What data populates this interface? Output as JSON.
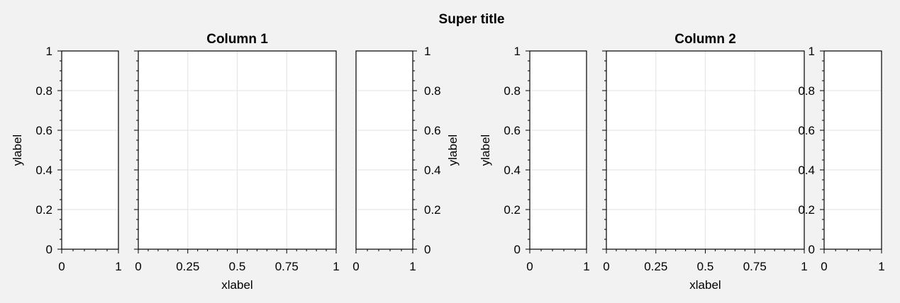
{
  "figure": {
    "suptitle": "Super title",
    "background": "#f2f2f2",
    "axes_face": "#ffffff",
    "grid_color": "#e6e6e6"
  },
  "chart_data": [
    {
      "type": "line",
      "name": "col1-left",
      "title": "",
      "xlabel": "",
      "ylabel": "ylabel",
      "xlim": [
        0,
        1
      ],
      "ylim": [
        0,
        1
      ],
      "xticks": [
        0,
        1
      ],
      "xtick_labels": [
        "0",
        "1"
      ],
      "yticks": [
        0,
        0.2,
        0.4,
        0.6,
        0.8,
        1
      ],
      "ytick_labels": [
        "0",
        "0.2",
        "0.4",
        "0.6",
        "0.8",
        "1"
      ],
      "yaxis_side": "left",
      "grid": false,
      "series": []
    },
    {
      "type": "line",
      "name": "col1-main",
      "title": "Column 1",
      "xlabel": "xlabel",
      "ylabel": "",
      "xlim": [
        0,
        1
      ],
      "ylim": [
        0,
        1
      ],
      "xticks": [
        0,
        0.25,
        0.5,
        0.75,
        1
      ],
      "xtick_labels": [
        "0",
        "0.25",
        "0.5",
        "0.75",
        "1"
      ],
      "yticks": [
        0,
        0.2,
        0.4,
        0.6,
        0.8,
        1
      ],
      "ytick_labels": [],
      "yaxis_side": "left",
      "grid": true,
      "series": []
    },
    {
      "type": "line",
      "name": "col1-right",
      "title": "",
      "xlabel": "",
      "ylabel": "ylabel",
      "xlim": [
        0,
        1
      ],
      "ylim": [
        0,
        1
      ],
      "xticks": [
        0,
        1
      ],
      "xtick_labels": [
        "0",
        "1"
      ],
      "yticks": [
        0,
        0.2,
        0.4,
        0.6,
        0.8,
        1
      ],
      "ytick_labels": [
        "0",
        "0.2",
        "0.4",
        "0.6",
        "0.8",
        "1"
      ],
      "yaxis_side": "right",
      "grid": false,
      "series": []
    },
    {
      "type": "line",
      "name": "col2-left",
      "title": "",
      "xlabel": "",
      "ylabel": "ylabel",
      "xlim": [
        0,
        1
      ],
      "ylim": [
        0,
        1
      ],
      "xticks": [
        0,
        1
      ],
      "xtick_labels": [
        "0",
        "1"
      ],
      "yticks": [
        0,
        0.2,
        0.4,
        0.6,
        0.8,
        1
      ],
      "ytick_labels": [
        "0",
        "0.2",
        "0.4",
        "0.6",
        "0.8",
        "1"
      ],
      "yaxis_side": "left",
      "grid": false,
      "series": []
    },
    {
      "type": "line",
      "name": "col2-main",
      "title": "Column 2",
      "xlabel": "xlabel",
      "ylabel": "",
      "xlim": [
        0,
        1
      ],
      "ylim": [
        0,
        1
      ],
      "xticks": [
        0,
        0.25,
        0.5,
        0.75,
        1
      ],
      "xtick_labels": [
        "0",
        "0.25",
        "0.5",
        "0.75",
        "1"
      ],
      "yticks": [
        0,
        0.2,
        0.4,
        0.6,
        0.8,
        1
      ],
      "ytick_labels": [],
      "yaxis_side": "left",
      "grid": true,
      "series": []
    },
    {
      "type": "line",
      "name": "col2-right",
      "title": "",
      "xlabel": "",
      "ylabel": "",
      "xlim": [
        0,
        1
      ],
      "ylim": [
        0,
        1
      ],
      "xticks": [
        0,
        1
      ],
      "xtick_labels": [
        "0",
        "1"
      ],
      "yticks": [
        0,
        0.2,
        0.4,
        0.6,
        0.8,
        1
      ],
      "ytick_labels": [
        "0",
        "0.2",
        "0.4",
        "0.6",
        "0.8",
        "1"
      ],
      "yaxis_side": "left",
      "grid": false,
      "series": []
    }
  ]
}
